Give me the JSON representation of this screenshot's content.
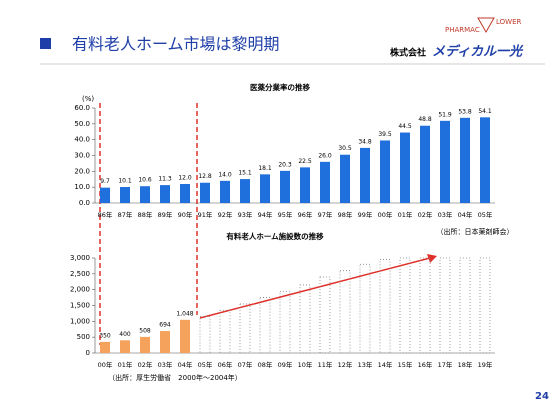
{
  "header": {
    "title": "有料老人ホーム市場は黎明期",
    "logo_top": "PHARMAC",
    "logo_side": "LOWER",
    "company_prefix": "株式会社",
    "company_name": "メディカル一光"
  },
  "page_number": "24",
  "chart_data": [
    {
      "type": "bar",
      "title": "医薬分業率の推移",
      "y_unit": "(%)",
      "source": "（出所：日本薬剤師会）",
      "categories": [
        "86年",
        "87年",
        "88年",
        "89年",
        "90年",
        "91年",
        "92年",
        "93年",
        "94年",
        "95年",
        "96年",
        "97年",
        "98年",
        "99年",
        "00年",
        "01年",
        "02年",
        "03年",
        "04年",
        "05年"
      ],
      "series": [
        {
          "color": "#1f6fdc",
          "values": [
            9.7,
            10.1,
            10.6,
            11.3,
            12.0,
            12.8,
            14.0,
            15.1,
            18.1,
            20.3,
            22.5,
            26.0,
            30.5,
            34.8,
            39.5,
            44.5,
            48.8,
            51.9,
            53.8,
            54.1
          ],
          "value_labels": [
            "9.7",
            "10.1",
            "10.6",
            "11.3",
            "12.0",
            "12.8",
            "14.0",
            "15.1",
            "18.1",
            "20.3",
            "22.5",
            "26.0",
            "30.5",
            "34.8",
            "39.5",
            "44.5",
            "48.8",
            "51.9",
            "53.8",
            "54.1"
          ]
        }
      ],
      "ylim": [
        0,
        60
      ],
      "yticks": [
        {
          "value": 0,
          "label": "0.0"
        },
        {
          "value": 10,
          "label": "10.0"
        },
        {
          "value": 20,
          "label": "20.0"
        },
        {
          "value": 30,
          "label": "30.0"
        },
        {
          "value": 40,
          "label": "40.0"
        },
        {
          "value": 50,
          "label": "50.0"
        },
        {
          "value": 60,
          "label": "60.0"
        }
      ]
    },
    {
      "type": "bar",
      "title": "有料老人ホーム施設数の推移",
      "source": "（出所：厚生労働省　2000年～2004年）",
      "categories": [
        "00年",
        "01年",
        "02年",
        "03年",
        "04年",
        "05年",
        "06年",
        "07年",
        "08年",
        "09年",
        "10年",
        "11年",
        "12年",
        "13年",
        "14年",
        "15年",
        "16年",
        "17年",
        "18年",
        "19年"
      ],
      "series": [
        {
          "color": "#f5a25d",
          "values": [
            350,
            400,
            508,
            694,
            1048,
            null,
            null,
            null,
            null,
            null,
            null,
            null,
            null,
            null,
            null,
            null,
            null,
            null,
            null,
            null
          ],
          "value_labels": [
            "350",
            "400",
            "508",
            "694",
            "1,048",
            null,
            null,
            null,
            null,
            null,
            null,
            null,
            null,
            null,
            null,
            null,
            null,
            null,
            null,
            null
          ]
        },
        {
          "color": "#888888",
          "style": "dotted",
          "values": [
            null,
            null,
            null,
            null,
            null,
            1150,
            1350,
            1550,
            1750,
            1950,
            2150,
            2400,
            2600,
            2800,
            2950,
            3000,
            3000,
            3000,
            3000,
            3000
          ]
        }
      ],
      "ylim": [
        0,
        3000
      ],
      "yticks": [
        0,
        500,
        {
          "value": 1000,
          "label": "1,000"
        },
        {
          "value": 1500,
          "label": "1,500"
        },
        {
          "value": 2000,
          "label": "2,000"
        },
        {
          "value": 2500,
          "label": "2,500"
        },
        {
          "value": 3000,
          "label": "3,000"
        }
      ]
    }
  ]
}
